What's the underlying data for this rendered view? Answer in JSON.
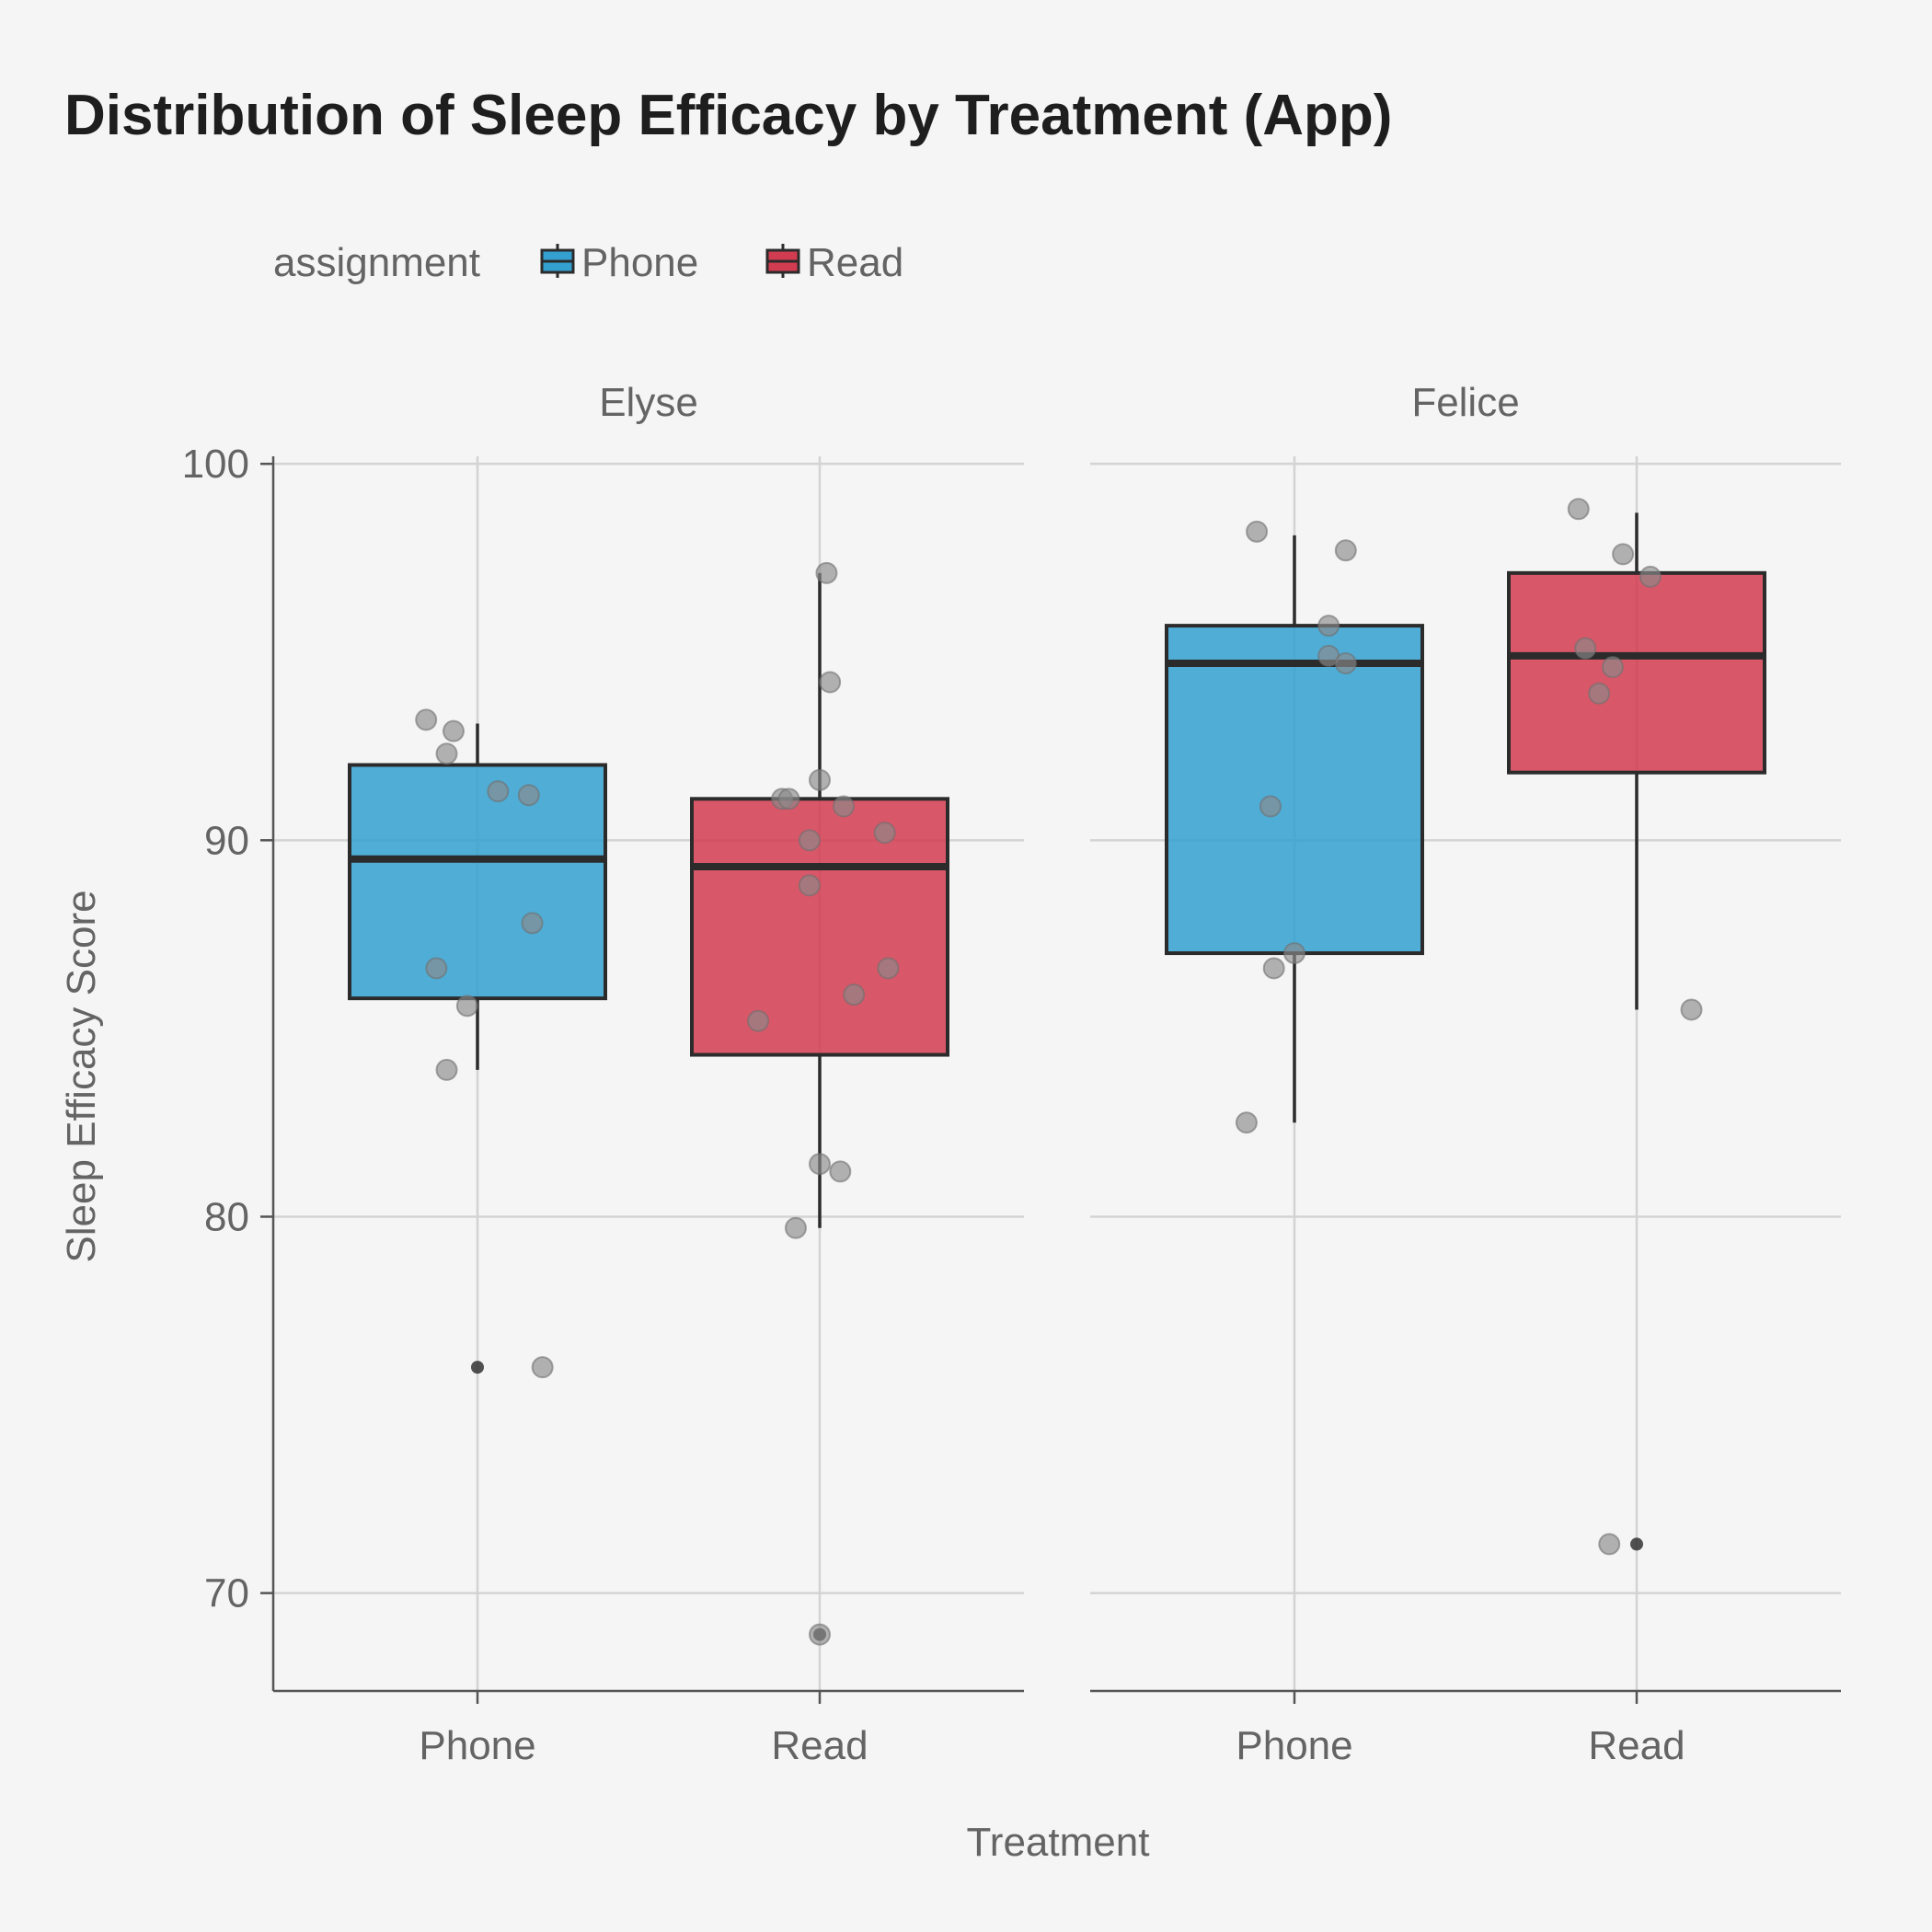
{
  "chart_data": {
    "type": "boxplot",
    "title": "Distribution of Sleep Efficacy by Treatment (App)",
    "xlabel": "Treatment",
    "ylabel": "Sleep Efficacy Score",
    "ylim": [
      67.4,
      100.2
    ],
    "yticks": [
      70,
      80,
      90,
      100
    ],
    "categories": [
      "Phone",
      "Read"
    ],
    "legend": {
      "title": "assignment",
      "position": "top-left",
      "items": [
        {
          "label": "Phone",
          "color": "#33a0d0"
        },
        {
          "label": "Read",
          "color": "#d23c50"
        }
      ]
    },
    "grid": true,
    "point_color": "#8a8a8a",
    "panels": [
      {
        "name": "Elyse",
        "boxes": [
          {
            "category": "Phone",
            "min": 83.9,
            "q1": 85.8,
            "median": 89.5,
            "q3": 92.0,
            "max": 93.1,
            "outliers": [
              76.0
            ],
            "points": [
              [
                -0.15,
                93.2
              ],
              [
                -0.07,
                92.9
              ],
              [
                -0.09,
                92.3
              ],
              [
                0.06,
                91.3
              ],
              [
                0.15,
                91.2
              ],
              [
                0.16,
                87.8
              ],
              [
                -0.12,
                86.6
              ],
              [
                -0.03,
                85.6
              ],
              [
                -0.09,
                83.9
              ],
              [
                0.19,
                76.0
              ]
            ]
          },
          {
            "category": "Read",
            "min": 79.7,
            "q1": 84.3,
            "median": 89.3,
            "q3": 91.1,
            "max": 97.1,
            "outliers": [
              68.9
            ],
            "points": [
              [
                0.02,
                97.1
              ],
              [
                0.03,
                94.2
              ],
              [
                0.0,
                91.6
              ],
              [
                -0.11,
                91.1
              ],
              [
                -0.09,
                91.1
              ],
              [
                0.07,
                90.9
              ],
              [
                -0.03,
                90.0
              ],
              [
                0.19,
                90.2
              ],
              [
                -0.03,
                88.8
              ],
              [
                0.2,
                86.6
              ],
              [
                0.1,
                85.9
              ],
              [
                -0.18,
                85.2
              ],
              [
                0.0,
                81.4
              ],
              [
                0.06,
                81.2
              ],
              [
                -0.07,
                79.7
              ],
              [
                0.0,
                68.9
              ]
            ]
          }
        ]
      },
      {
        "name": "Felice",
        "boxes": [
          {
            "category": "Phone",
            "min": 82.5,
            "q1": 87.0,
            "median": 94.7,
            "q3": 95.7,
            "max": 98.1,
            "outliers": [],
            "points": [
              [
                -0.11,
                98.2
              ],
              [
                0.15,
                97.7
              ],
              [
                0.1,
                95.7
              ],
              [
                0.1,
                94.9
              ],
              [
                0.15,
                94.7
              ],
              [
                -0.07,
                90.9
              ],
              [
                0.0,
                87.0
              ],
              [
                -0.06,
                86.6
              ],
              [
                -0.14,
                82.5
              ]
            ]
          },
          {
            "category": "Read",
            "min": 85.5,
            "q1": 91.8,
            "median": 94.9,
            "q3": 97.1,
            "max": 98.7,
            "outliers": [
              71.3
            ],
            "points": [
              [
                -0.17,
                98.8
              ],
              [
                -0.04,
                97.6
              ],
              [
                0.04,
                97.0
              ],
              [
                -0.15,
                95.1
              ],
              [
                -0.07,
                94.6
              ],
              [
                -0.11,
                93.9
              ],
              [
                0.16,
                85.5
              ],
              [
                -0.08,
                71.3
              ]
            ]
          }
        ]
      }
    ]
  }
}
